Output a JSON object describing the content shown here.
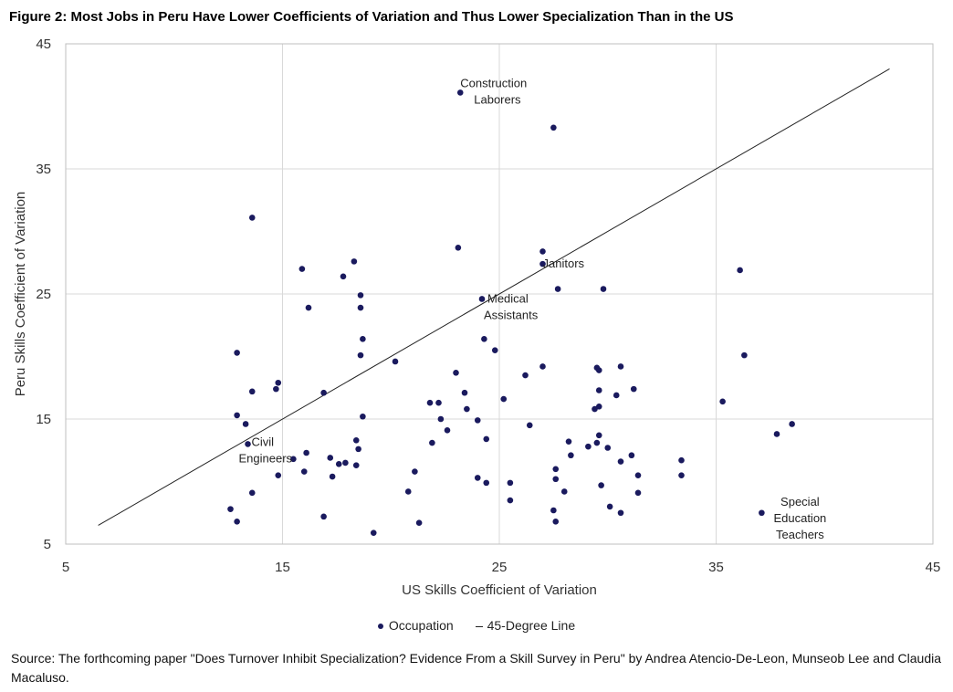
{
  "title": "Figure 2: Most Jobs in Peru Have Lower Coefficients of Variation and Thus Lower Specialization Than in the US",
  "source": "Source: The forthcoming paper \"Does Turnover Inhibit Specialization? Evidence From a Skill Survey in Peru\" by Andrea Atencio-De-Leon, Munseob Lee and Claudia Macaluso.",
  "colors": {
    "points": "#1a1a5e",
    "line": "#222222",
    "grid": "#d9d9d9"
  },
  "chart_data": {
    "type": "scatter",
    "xlabel": "US Skills Coefficient of Variation",
    "ylabel": "Peru Skills Coefficient of Variation",
    "xlim": [
      5,
      45
    ],
    "ylim": [
      5,
      45
    ],
    "xticks": [
      "5",
      "15",
      "25",
      "35",
      "45"
    ],
    "yticks": [
      "5",
      "15",
      "25",
      "35",
      "45"
    ],
    "grid": true,
    "legend_position": "bottom",
    "legend": {
      "points": "Occupation",
      "line": "45-Degree Line"
    },
    "reference_line": {
      "name": "45-Degree Line",
      "x": [
        6.5,
        43
      ],
      "y": [
        6.5,
        43
      ]
    },
    "series": [
      {
        "name": "Occupation",
        "points": [
          [
            23.2,
            41.1
          ],
          [
            27.5,
            38.3
          ],
          [
            13.6,
            31.1
          ],
          [
            23.1,
            28.7
          ],
          [
            27.0,
            28.4
          ],
          [
            27.0,
            27.4
          ],
          [
            18.3,
            27.6
          ],
          [
            15.9,
            27.0
          ],
          [
            17.8,
            26.4
          ],
          [
            36.1,
            26.9
          ],
          [
            27.7,
            25.4
          ],
          [
            29.8,
            25.4
          ],
          [
            18.6,
            24.9
          ],
          [
            24.2,
            24.6
          ],
          [
            16.2,
            23.9
          ],
          [
            18.6,
            23.9
          ],
          [
            24.3,
            21.4
          ],
          [
            18.7,
            21.4
          ],
          [
            12.9,
            20.3
          ],
          [
            24.8,
            20.5
          ],
          [
            18.6,
            20.1
          ],
          [
            36.3,
            20.1
          ],
          [
            20.2,
            19.6
          ],
          [
            27.0,
            19.2
          ],
          [
            29.5,
            19.1
          ],
          [
            29.6,
            18.9
          ],
          [
            30.6,
            19.2
          ],
          [
            23.0,
            18.7
          ],
          [
            26.2,
            18.5
          ],
          [
            14.8,
            17.9
          ],
          [
            14.7,
            17.4
          ],
          [
            13.6,
            17.2
          ],
          [
            16.9,
            17.1
          ],
          [
            29.6,
            17.3
          ],
          [
            31.2,
            17.4
          ],
          [
            23.4,
            17.1
          ],
          [
            30.4,
            16.9
          ],
          [
            25.2,
            16.6
          ],
          [
            35.3,
            16.4
          ],
          [
            21.8,
            16.3
          ],
          [
            22.2,
            16.3
          ],
          [
            29.6,
            16.0
          ],
          [
            29.4,
            15.8
          ],
          [
            23.5,
            15.8
          ],
          [
            12.9,
            15.3
          ],
          [
            18.7,
            15.2
          ],
          [
            22.3,
            15.0
          ],
          [
            24.0,
            14.9
          ],
          [
            13.3,
            14.6
          ],
          [
            26.4,
            14.5
          ],
          [
            38.5,
            14.6
          ],
          [
            22.6,
            14.1
          ],
          [
            29.6,
            13.7
          ],
          [
            37.8,
            13.8
          ],
          [
            24.4,
            13.4
          ],
          [
            28.2,
            13.2
          ],
          [
            21.9,
            13.1
          ],
          [
            13.4,
            13.0
          ],
          [
            18.4,
            13.3
          ],
          [
            29.5,
            13.1
          ],
          [
            29.1,
            12.8
          ],
          [
            30.0,
            12.7
          ],
          [
            18.5,
            12.6
          ],
          [
            16.1,
            12.3
          ],
          [
            28.3,
            12.1
          ],
          [
            31.1,
            12.1
          ],
          [
            15.5,
            11.8
          ],
          [
            17.2,
            11.9
          ],
          [
            30.6,
            11.6
          ],
          [
            33.4,
            11.7
          ],
          [
            17.9,
            11.5
          ],
          [
            17.6,
            11.4
          ],
          [
            18.4,
            11.3
          ],
          [
            27.6,
            11.0
          ],
          [
            16.0,
            10.8
          ],
          [
            21.1,
            10.8
          ],
          [
            14.8,
            10.5
          ],
          [
            17.3,
            10.4
          ],
          [
            24.0,
            10.3
          ],
          [
            31.4,
            10.5
          ],
          [
            33.4,
            10.5
          ],
          [
            27.6,
            10.2
          ],
          [
            24.4,
            9.9
          ],
          [
            25.5,
            9.9
          ],
          [
            29.7,
            9.7
          ],
          [
            13.6,
            9.1
          ],
          [
            20.8,
            9.2
          ],
          [
            28.0,
            9.2
          ],
          [
            31.4,
            9.1
          ],
          [
            25.5,
            8.5
          ],
          [
            30.1,
            8.0
          ],
          [
            12.6,
            7.8
          ],
          [
            27.5,
            7.7
          ],
          [
            30.6,
            7.5
          ],
          [
            37.1,
            7.5
          ],
          [
            16.9,
            7.2
          ],
          [
            12.9,
            6.8
          ],
          [
            21.3,
            6.7
          ],
          [
            27.6,
            6.8
          ],
          [
            19.2,
            5.9
          ]
        ]
      }
    ],
    "annotations": [
      {
        "lines": [
          "Construction",
          "Laborers"
        ],
        "x": 23.2,
        "y": 41.1
      },
      {
        "lines": [
          "Janitors"
        ],
        "x": 27.0,
        "y": 27.4
      },
      {
        "lines": [
          "Medical",
          "Assistants"
        ],
        "x": 24.2,
        "y": 24.6
      },
      {
        "lines": [
          "Civil",
          "Engineers"
        ],
        "x": 13.4,
        "y": 13.0
      },
      {
        "lines": [
          "Special",
          "Education",
          "Teachers"
        ],
        "x": 37.1,
        "y": 7.5
      }
    ]
  }
}
